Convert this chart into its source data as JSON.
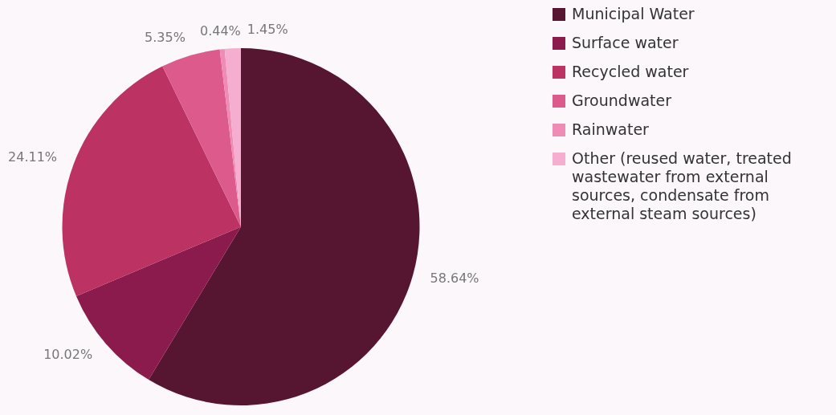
{
  "chart_data": {
    "type": "pie",
    "categories": [
      "Municipal Water",
      "Surface water",
      "Recycled water",
      "Groundwater",
      "Rainwater",
      "Other (reused water, treated wastewater from external sources, condensate from external steam sources)"
    ],
    "values": [
      58.64,
      10.02,
      24.11,
      5.35,
      0.44,
      1.45
    ],
    "colors": [
      "#561530",
      "#8b1a4d",
      "#bc3262",
      "#dc5b8c",
      "#f08bb5",
      "#f5aed0"
    ],
    "value_labels": [
      "58.64%",
      "10.02%",
      "24.11%",
      "5.35%",
      "0.44%",
      "1.45%"
    ],
    "legend": "right"
  }
}
